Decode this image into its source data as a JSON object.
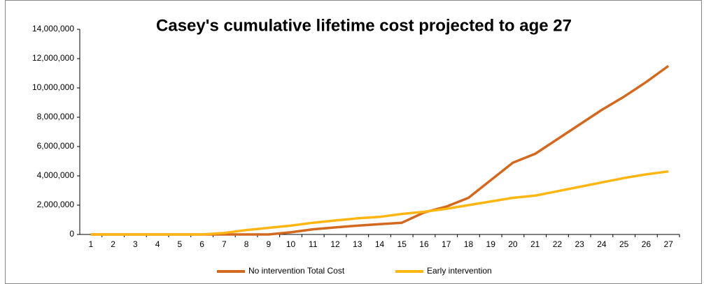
{
  "chart_data": {
    "type": "line",
    "title": "Casey's cumulative lifetime cost projected to age 27",
    "categories": [
      "1",
      "2",
      "3",
      "4",
      "5",
      "6",
      "7",
      "8",
      "9",
      "10",
      "11",
      "12",
      "13",
      "14",
      "15",
      "16",
      "17",
      "18",
      "19",
      "20",
      "21",
      "22",
      "23",
      "24",
      "25",
      "26",
      "27"
    ],
    "series": [
      {
        "name": "No intervention Total Cost",
        "color": "#d2691e",
        "values": [
          0,
          0,
          0,
          0,
          0,
          0,
          0,
          0,
          0,
          150000,
          350000,
          480000,
          600000,
          700000,
          800000,
          1500000,
          1900000,
          2500000,
          3700000,
          4900000,
          5500000,
          6500000,
          7500000,
          8500000,
          9400000,
          10400000,
          11500000
        ]
      },
      {
        "name": "Early intervention",
        "color": "#ffb612",
        "values": [
          0,
          0,
          0,
          0,
          0,
          0,
          100000,
          300000,
          450000,
          600000,
          800000,
          950000,
          1100000,
          1200000,
          1400000,
          1550000,
          1750000,
          2000000,
          2250000,
          2500000,
          2650000,
          2950000,
          3250000,
          3550000,
          3850000,
          4100000,
          4300000
        ]
      }
    ],
    "ylim": [
      0,
      14000000
    ],
    "yticks": [
      0,
      {
        "value": 2000000,
        "label": "2,000,000"
      },
      {
        "value": 4000000,
        "label": "4,000,000"
      },
      {
        "value": 6000000,
        "label": "6,000,000"
      },
      {
        "value": 8000000,
        "label": "8,000,000"
      },
      {
        "value": 10000000,
        "label": "10,000,000"
      },
      {
        "value": 12000000,
        "label": "12,000,000"
      },
      {
        "value": 14000000,
        "label": "14,000,000"
      }
    ],
    "grid": false,
    "legend": "bottom"
  }
}
